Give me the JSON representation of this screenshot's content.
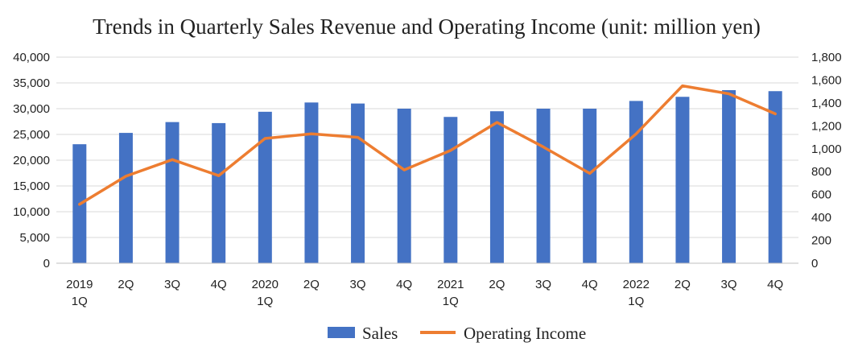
{
  "chart_data": {
    "type": "bar",
    "title": "Trends in Quarterly Sales Revenue and Operating Income (unit: million yen)",
    "categories": [
      [
        "2019",
        "1Q"
      ],
      [
        "2Q"
      ],
      [
        "3Q"
      ],
      [
        "4Q"
      ],
      [
        "2020",
        "1Q"
      ],
      [
        "2Q"
      ],
      [
        "3Q"
      ],
      [
        "4Q"
      ],
      [
        "2021",
        "1Q"
      ],
      [
        "2Q"
      ],
      [
        "3Q"
      ],
      [
        "4Q"
      ],
      [
        "2022",
        "1Q"
      ],
      [
        "2Q"
      ],
      [
        "3Q"
      ],
      [
        "4Q"
      ]
    ],
    "series": [
      {
        "name": "Sales",
        "type": "bar",
        "axis": "left",
        "color": "#4472C4",
        "values": [
          23100,
          25300,
          27400,
          27200,
          29400,
          31200,
          31000,
          30000,
          28400,
          29500,
          30000,
          30000,
          31500,
          32300,
          33600,
          33400
        ]
      },
      {
        "name": "Operating Income",
        "type": "line",
        "axis": "right",
        "color": "#ED7D31",
        "values": [
          515,
          760,
          905,
          765,
          1090,
          1130,
          1100,
          815,
          985,
          1230,
          1015,
          785,
          1130,
          1550,
          1480,
          1305
        ]
      }
    ],
    "y_left": {
      "lim": [
        0,
        40000
      ],
      "ticks": [
        "0",
        "5,000",
        "10,000",
        "15,000",
        "20,000",
        "25,000",
        "30,000",
        "35,000",
        "40,000"
      ]
    },
    "y_right": {
      "lim": [
        0,
        1800
      ],
      "ticks": [
        "0",
        "200",
        "400",
        "600",
        "800",
        "1,000",
        "1,200",
        "1,400",
        "1,600",
        "1,800"
      ]
    },
    "grid": true,
    "legend_position": "bottom"
  }
}
